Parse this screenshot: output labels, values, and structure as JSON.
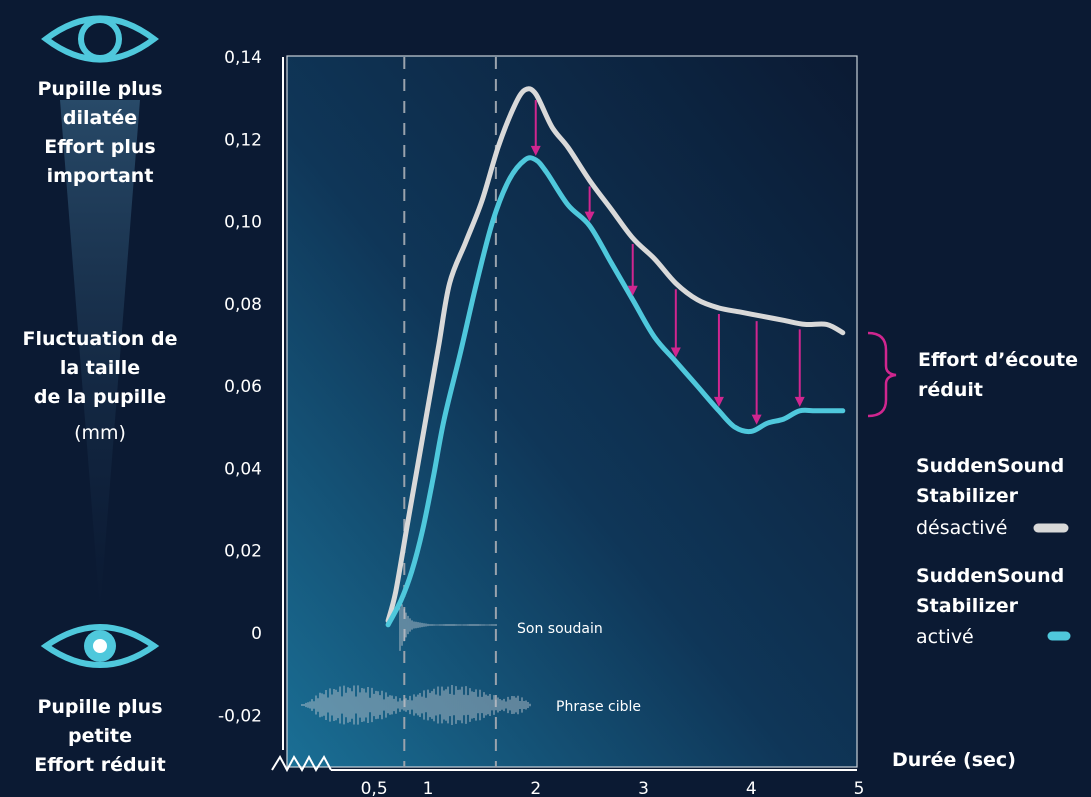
{
  "left_panel": {
    "top_label_lines": [
      "Pupille plus",
      "dilatée",
      "Effort plus",
      "important"
    ],
    "mid_label_lines": [
      "Fluctuation de",
      "la taille",
      "de la pupille"
    ],
    "mid_label_unit": "(mm)",
    "bottom_label_lines": [
      "Pupille plus",
      "petite",
      "Effort réduit"
    ],
    "top_icon": "eye-icon",
    "bottom_icon": "eye-icon"
  },
  "annotations": {
    "sudden_sound": "Son soudain",
    "target_sentence": "Phrase cible",
    "effort_lines": [
      "Effort d’écoute",
      "réduit"
    ]
  },
  "legend": {
    "off_lines": [
      "SuddenSound",
      "Stabilizer"
    ],
    "off_state": "désactivé",
    "on_lines": [
      "SuddenSound",
      "Stabilizer"
    ],
    "on_state": "activé"
  },
  "colors": {
    "background": "#0b1a33",
    "eye": "#4fc8dc",
    "series_off": "#d9d9d9",
    "series_on": "#4fc8dc",
    "arrows": "#d0268f",
    "bracket": "#d0268f",
    "dashed_lines": "#9aa3ad"
  },
  "chart_data": {
    "type": "line",
    "title": "",
    "xlabel": "Durée (sec)",
    "ylabel": "",
    "xlim": [
      0.25,
      5.0
    ],
    "ylim": [
      -0.025,
      0.145
    ],
    "x_ticks": [
      0.5,
      1,
      2,
      3,
      4,
      5
    ],
    "x_tick_labels": [
      "0,5",
      "1",
      "2",
      "3",
      "4",
      "5"
    ],
    "y_ticks": [
      0.14,
      0.12,
      0.1,
      0.08,
      0.06,
      0.04,
      0.02,
      0,
      -0.02
    ],
    "y_tick_labels": [
      "0,14",
      "0,12",
      "0,10",
      "0,08",
      "0,06",
      "0,04",
      "0,02",
      "0",
      "-0,02"
    ],
    "axis_break": true,
    "vlines": [
      0.78,
      1.63
    ],
    "series": [
      {
        "name": "SuddenSound Stabilizer désactivé",
        "x": [
          0.63,
          0.7,
          0.8,
          0.9,
          1.0,
          1.1,
          1.2,
          1.35,
          1.5,
          1.65,
          1.8,
          1.9,
          2.0,
          2.15,
          2.3,
          2.5,
          2.7,
          2.9,
          3.1,
          3.3,
          3.5,
          3.7,
          3.9,
          4.1,
          4.3,
          4.5,
          4.7,
          4.85
        ],
        "values": [
          0.003,
          0.01,
          0.025,
          0.04,
          0.055,
          0.07,
          0.085,
          0.095,
          0.105,
          0.118,
          0.128,
          0.132,
          0.131,
          0.123,
          0.118,
          0.11,
          0.103,
          0.096,
          0.091,
          0.085,
          0.081,
          0.079,
          0.078,
          0.077,
          0.076,
          0.075,
          0.075,
          0.073
        ]
      },
      {
        "name": "SuddenSound Stabilizer activé",
        "x": [
          0.63,
          0.75,
          0.85,
          0.95,
          1.05,
          1.15,
          1.3,
          1.45,
          1.6,
          1.75,
          1.9,
          2.0,
          2.1,
          2.3,
          2.5,
          2.7,
          2.9,
          3.1,
          3.3,
          3.5,
          3.7,
          3.85,
          4.0,
          4.15,
          4.3,
          4.45,
          4.6,
          4.85
        ],
        "values": [
          0.002,
          0.008,
          0.015,
          0.025,
          0.038,
          0.052,
          0.068,
          0.085,
          0.1,
          0.11,
          0.115,
          0.115,
          0.112,
          0.104,
          0.099,
          0.09,
          0.081,
          0.072,
          0.066,
          0.06,
          0.054,
          0.05,
          0.049,
          0.051,
          0.052,
          0.054,
          0.054,
          0.054
        ]
      }
    ],
    "arrows_x": [
      2.0,
      2.5,
      2.9,
      3.3,
      3.7,
      4.05,
      4.45
    ]
  }
}
